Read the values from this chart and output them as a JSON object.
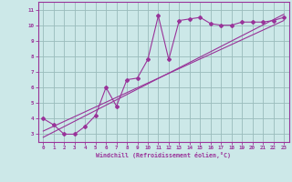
{
  "bg_color": "#cce8e8",
  "line_color": "#993399",
  "grid_color": "#99bbbb",
  "xlabel": "Windchill (Refroidissement éolien,°C)",
  "xlim": [
    -0.5,
    23.5
  ],
  "ylim": [
    2.5,
    11.5
  ],
  "xticks": [
    0,
    1,
    2,
    3,
    4,
    5,
    6,
    7,
    8,
    9,
    10,
    11,
    12,
    13,
    14,
    15,
    16,
    17,
    18,
    19,
    20,
    21,
    22,
    23
  ],
  "yticks": [
    3,
    4,
    5,
    6,
    7,
    8,
    9,
    10,
    11
  ],
  "line1_x": [
    0,
    1,
    2,
    3,
    4,
    5,
    6,
    7,
    8,
    9,
    10,
    11,
    12,
    13,
    14,
    15,
    16,
    17,
    18,
    19,
    20,
    21,
    22,
    23
  ],
  "line1_y": [
    4.0,
    3.6,
    3.0,
    3.0,
    3.5,
    4.2,
    6.0,
    4.8,
    6.5,
    6.6,
    7.8,
    10.6,
    7.8,
    10.3,
    10.4,
    10.5,
    10.1,
    10.0,
    10.0,
    10.2,
    10.2,
    10.2,
    10.3,
    10.5
  ],
  "line2_x": [
    0,
    23
  ],
  "line2_y": [
    3.2,
    10.3
  ],
  "line3_x": [
    0,
    23
  ],
  "line3_y": [
    2.8,
    10.7
  ]
}
